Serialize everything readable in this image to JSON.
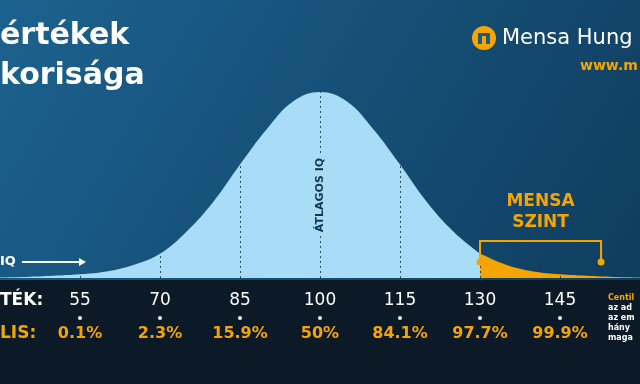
{
  "chart_data": {
    "type": "area",
    "title": [
      "értékek",
      "korisága"
    ],
    "logo": {
      "text": "Mensa Hung",
      "url": "www.m"
    },
    "x": [
      40,
      45,
      50,
      55,
      60,
      65,
      70,
      75,
      80,
      85,
      90,
      95,
      100,
      105,
      110,
      115,
      120,
      125,
      130,
      135,
      140,
      145,
      150,
      155,
      160
    ],
    "series": [
      {
        "color": "#a9dcf6",
        "values": [
          0.3,
          0.6,
          1.2,
          2,
          3.5,
          7,
          13,
          25,
          41,
          61,
          80,
          95,
          100,
          95,
          80,
          61,
          41,
          25,
          13,
          null,
          null,
          null,
          null,
          null,
          null
        ]
      },
      {
        "color": "#f6a500",
        "values": [
          null,
          null,
          null,
          null,
          null,
          null,
          null,
          null,
          null,
          null,
          null,
          null,
          null,
          null,
          null,
          null,
          null,
          null,
          13,
          7,
          3.5,
          2,
          1.2,
          0.6,
          0.3
        ]
      }
    ],
    "xlim": [
      40,
      160
    ],
    "xticks": [
      55,
      70,
      85,
      100,
      115,
      130,
      145
    ],
    "ylim": [
      0,
      100
    ],
    "tick_labels": "x",
    "grid": true,
    "row_labels": [
      "TÉK:",
      "LIS:"
    ],
    "centiles": [
      {
        "value": 0.1,
        "label": "0.1%"
      },
      {
        "value": 2.3,
        "label": "2.3%"
      },
      {
        "value": 15.9,
        "label": "15.9%"
      },
      {
        "value": 50,
        "label": "50%"
      },
      {
        "value": 84.1,
        "label": "84.1%"
      },
      {
        "value": 97.7,
        "label": "97.7%"
      },
      {
        "value": 99.9,
        "label": "99.9%"
      }
    ],
    "annotations": {
      "avg_label": {
        "text": "ÁTLAGOS IQ",
        "x": 100
      },
      "low_label": {
        "text": "IQ"
      },
      "mensa": {
        "text": "MENSA SZINT",
        "from": 130,
        "to": 152.7
      }
    },
    "note": [
      "Centil",
      "az ad",
      "az em",
      "hány",
      "maga"
    ]
  }
}
